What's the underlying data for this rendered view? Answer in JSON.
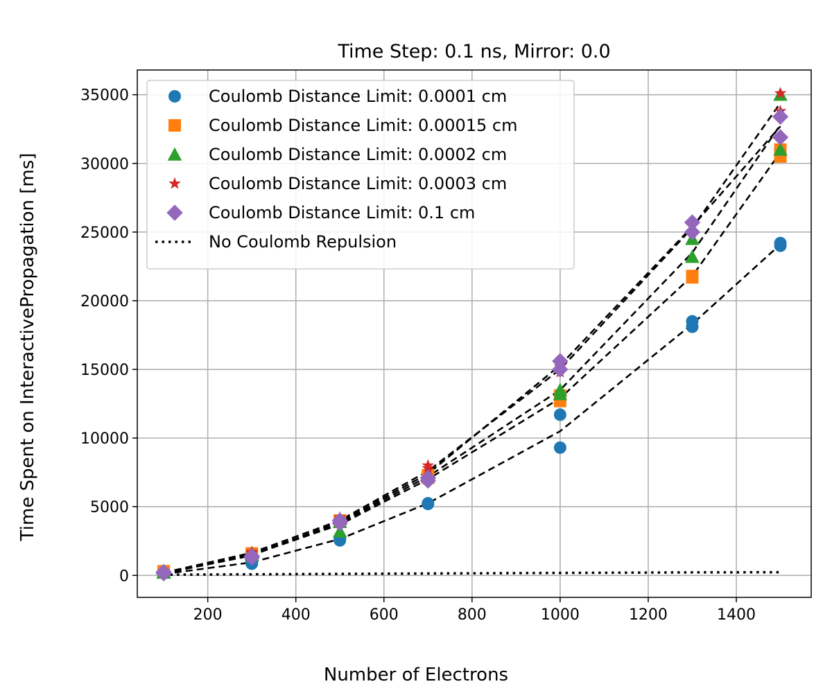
{
  "chart_data": {
    "type": "scatter",
    "title": "Time Step: 0.1 ns, Mirror: 0.0",
    "xlabel": "Number of Electrons",
    "ylabel": "Time Spent on InteractivePropagation [ms]",
    "xlim": [
      40,
      1570
    ],
    "ylim": [
      -1600,
      36800
    ],
    "xticks": [
      200,
      400,
      600,
      800,
      1000,
      1200,
      1400
    ],
    "yticks": [
      0,
      5000,
      10000,
      15000,
      20000,
      25000,
      30000,
      35000
    ],
    "grid": true,
    "legend_position": "upper-left",
    "series": [
      {
        "name": "Coulomb Distance Limit: 0.0001 cm",
        "color": "#1f77b4",
        "marker": "circle",
        "points": [
          [
            100,
            150
          ],
          [
            100,
            200
          ],
          [
            300,
            850
          ],
          [
            300,
            1000
          ],
          [
            500,
            2550
          ],
          [
            500,
            2700
          ],
          [
            700,
            5200
          ],
          [
            700,
            5250
          ],
          [
            1000,
            9300
          ],
          [
            1000,
            11700
          ],
          [
            1300,
            18100
          ],
          [
            1300,
            18500
          ],
          [
            1500,
            24000
          ],
          [
            1500,
            24200
          ]
        ],
        "fit": [
          [
            100,
            100
          ],
          [
            300,
            950
          ],
          [
            500,
            2650
          ],
          [
            700,
            5250
          ],
          [
            1000,
            10500
          ],
          [
            1300,
            18300
          ],
          [
            1500,
            24100
          ]
        ]
      },
      {
        "name": "Coulomb Distance Limit: 0.00015 cm",
        "color": "#ff7f0e",
        "marker": "square",
        "points": [
          [
            100,
            250
          ],
          [
            100,
            300
          ],
          [
            300,
            1500
          ],
          [
            300,
            1600
          ],
          [
            500,
            3900
          ],
          [
            500,
            4000
          ],
          [
            700,
            7100
          ],
          [
            700,
            7300
          ],
          [
            1000,
            12700
          ],
          [
            1000,
            13100
          ],
          [
            1300,
            21700
          ],
          [
            1300,
            21800
          ],
          [
            1500,
            30500
          ],
          [
            1500,
            31000
          ]
        ],
        "fit": [
          [
            100,
            150
          ],
          [
            300,
            1500
          ],
          [
            500,
            3700
          ],
          [
            700,
            7000
          ],
          [
            1000,
            12900
          ],
          [
            1300,
            21800
          ],
          [
            1500,
            30800
          ]
        ]
      },
      {
        "name": "Coulomb Distance Limit: 0.0002 cm",
        "color": "#2ca02c",
        "marker": "triangle",
        "points": [
          [
            100,
            200
          ],
          [
            100,
            250
          ],
          [
            300,
            1500
          ],
          [
            300,
            1600
          ],
          [
            500,
            3200
          ],
          [
            500,
            3900
          ],
          [
            700,
            7200
          ],
          [
            700,
            7300
          ],
          [
            1000,
            13200
          ],
          [
            1000,
            13500
          ],
          [
            1300,
            23200
          ],
          [
            1300,
            24500
          ],
          [
            1500,
            31000
          ],
          [
            1500,
            35000
          ]
        ],
        "fit": [
          [
            100,
            150
          ],
          [
            300,
            1550
          ],
          [
            500,
            3800
          ],
          [
            700,
            7200
          ],
          [
            1000,
            13500
          ],
          [
            1300,
            23500
          ],
          [
            1500,
            32800
          ]
        ]
      },
      {
        "name": "Coulomb Distance Limit: 0.0003 cm",
        "color": "#d62728",
        "marker": "star",
        "points": [
          [
            100,
            200
          ],
          [
            100,
            300
          ],
          [
            300,
            1600
          ],
          [
            300,
            1700
          ],
          [
            500,
            4000
          ],
          [
            500,
            4200
          ],
          [
            700,
            7800
          ],
          [
            700,
            8000
          ],
          [
            1000,
            14800
          ],
          [
            1000,
            15200
          ],
          [
            1300,
            25000
          ],
          [
            1300,
            25600
          ],
          [
            1500,
            33800
          ],
          [
            1500,
            35100
          ]
        ],
        "fit": [
          [
            100,
            200
          ],
          [
            300,
            1650
          ],
          [
            500,
            4000
          ],
          [
            700,
            7600
          ],
          [
            1000,
            15000
          ],
          [
            1300,
            25300
          ],
          [
            1500,
            34400
          ]
        ]
      },
      {
        "name": "Coulomb Distance Limit: 0.1 cm",
        "color": "#9467bd",
        "marker": "diamond",
        "points": [
          [
            100,
            150
          ],
          [
            100,
            250
          ],
          [
            300,
            1300
          ],
          [
            300,
            1400
          ],
          [
            500,
            3800
          ],
          [
            500,
            4000
          ],
          [
            700,
            6900
          ],
          [
            700,
            7100
          ],
          [
            1000,
            15000
          ],
          [
            1000,
            15600
          ],
          [
            1300,
            25000
          ],
          [
            1300,
            25700
          ],
          [
            1500,
            31900
          ],
          [
            1500,
            33400
          ]
        ],
        "fit": [
          [
            100,
            150
          ],
          [
            300,
            1450
          ],
          [
            500,
            3900
          ],
          [
            700,
            7400
          ],
          [
            1000,
            15300
          ],
          [
            1300,
            25400
          ],
          [
            1500,
            32700
          ]
        ]
      },
      {
        "name": "No Coulomb Repulsion",
        "color": "#000000",
        "style": "dotted-line",
        "line": [
          [
            100,
            50
          ],
          [
            300,
            80
          ],
          [
            500,
            110
          ],
          [
            700,
            140
          ],
          [
            1000,
            180
          ],
          [
            1300,
            220
          ],
          [
            1500,
            230
          ]
        ]
      }
    ]
  }
}
